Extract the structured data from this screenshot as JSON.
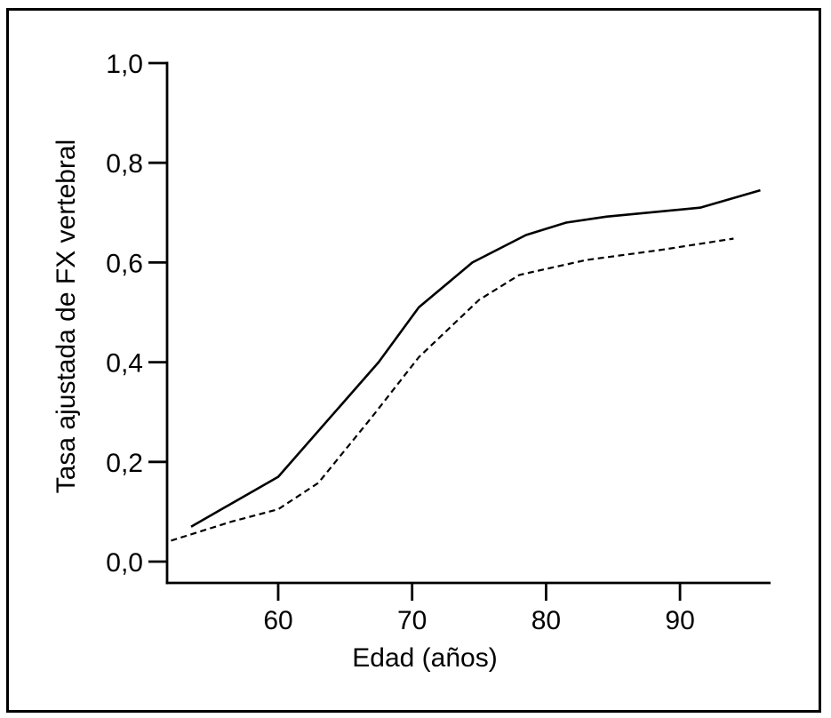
{
  "figure": {
    "background_color": "#ffffff",
    "frame_color": "#000000",
    "line_color": "#000000"
  },
  "chart_data": {
    "type": "line",
    "title": "",
    "xlabel": "Edad (años)",
    "ylabel": "Tasa ajustada de FX vertebral",
    "xlim": [
      51.5,
      96.8
    ],
    "ylim": [
      0.0,
      1.0
    ],
    "grid": false,
    "legend_position": "none",
    "decimal_separator": ",",
    "x_ticks": [
      {
        "value": 60,
        "label": "60"
      },
      {
        "value": 70,
        "label": "70"
      },
      {
        "value": 80,
        "label": "80"
      },
      {
        "value": 90,
        "label": "90"
      }
    ],
    "y_ticks": [
      {
        "value": 1.0,
        "label": "1,0"
      },
      {
        "value": 0.8,
        "label": "0,8"
      },
      {
        "value": 0.6,
        "label": "0,6"
      },
      {
        "value": 0.4,
        "label": "0,4"
      },
      {
        "value": 0.2,
        "label": "0,2"
      },
      {
        "value": 0.0,
        "label": "0,0"
      }
    ],
    "series": [
      {
        "name": "linea-continua",
        "style": "solid",
        "color": "#000000",
        "points": [
          [
            53.5,
            0.07
          ],
          [
            60,
            0.17
          ],
          [
            67.5,
            0.4
          ],
          [
            70.5,
            0.51
          ],
          [
            74.5,
            0.6
          ],
          [
            78.5,
            0.655
          ],
          [
            81.5,
            0.68
          ],
          [
            84.5,
            0.692
          ],
          [
            91.5,
            0.71
          ],
          [
            96,
            0.745
          ]
        ]
      },
      {
        "name": "linea-discontinua",
        "style": "dashed",
        "color": "#000000",
        "points": [
          [
            52,
            0.042
          ],
          [
            56.5,
            0.08
          ],
          [
            60,
            0.105
          ],
          [
            63,
            0.158
          ],
          [
            67,
            0.29
          ],
          [
            70.5,
            0.41
          ],
          [
            75,
            0.525
          ],
          [
            78,
            0.575
          ],
          [
            83,
            0.605
          ],
          [
            88.5,
            0.625
          ],
          [
            94,
            0.648
          ]
        ]
      }
    ]
  }
}
